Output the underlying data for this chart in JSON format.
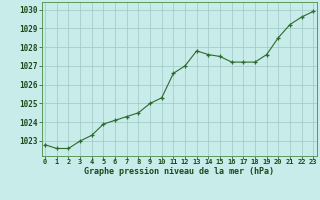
{
  "hours": [
    0,
    1,
    2,
    3,
    4,
    5,
    6,
    7,
    8,
    9,
    10,
    11,
    12,
    13,
    14,
    15,
    16,
    17,
    18,
    19,
    20,
    21,
    22,
    23
  ],
  "pressure": [
    1022.8,
    1022.6,
    1022.6,
    1023.0,
    1023.3,
    1023.9,
    1024.1,
    1024.3,
    1024.5,
    1025.0,
    1025.3,
    1026.6,
    1027.0,
    1027.8,
    1027.6,
    1027.5,
    1027.2,
    1027.2,
    1027.2,
    1027.6,
    1028.5,
    1029.2,
    1029.6,
    1029.9
  ],
  "ylim": [
    1022.2,
    1030.4
  ],
  "yticks": [
    1023,
    1024,
    1025,
    1026,
    1027,
    1028,
    1029,
    1030
  ],
  "line_color": "#2d6a2d",
  "marker_color": "#2d6a2d",
  "bg_color": "#c8ecea",
  "grid_color": "#9dc8c4",
  "xlabel": "Graphe pression niveau de la mer (hPa)",
  "xlabel_color": "#1a4a1a",
  "tick_label_color": "#1a4a1a",
  "border_color": "#5a9a5a"
}
